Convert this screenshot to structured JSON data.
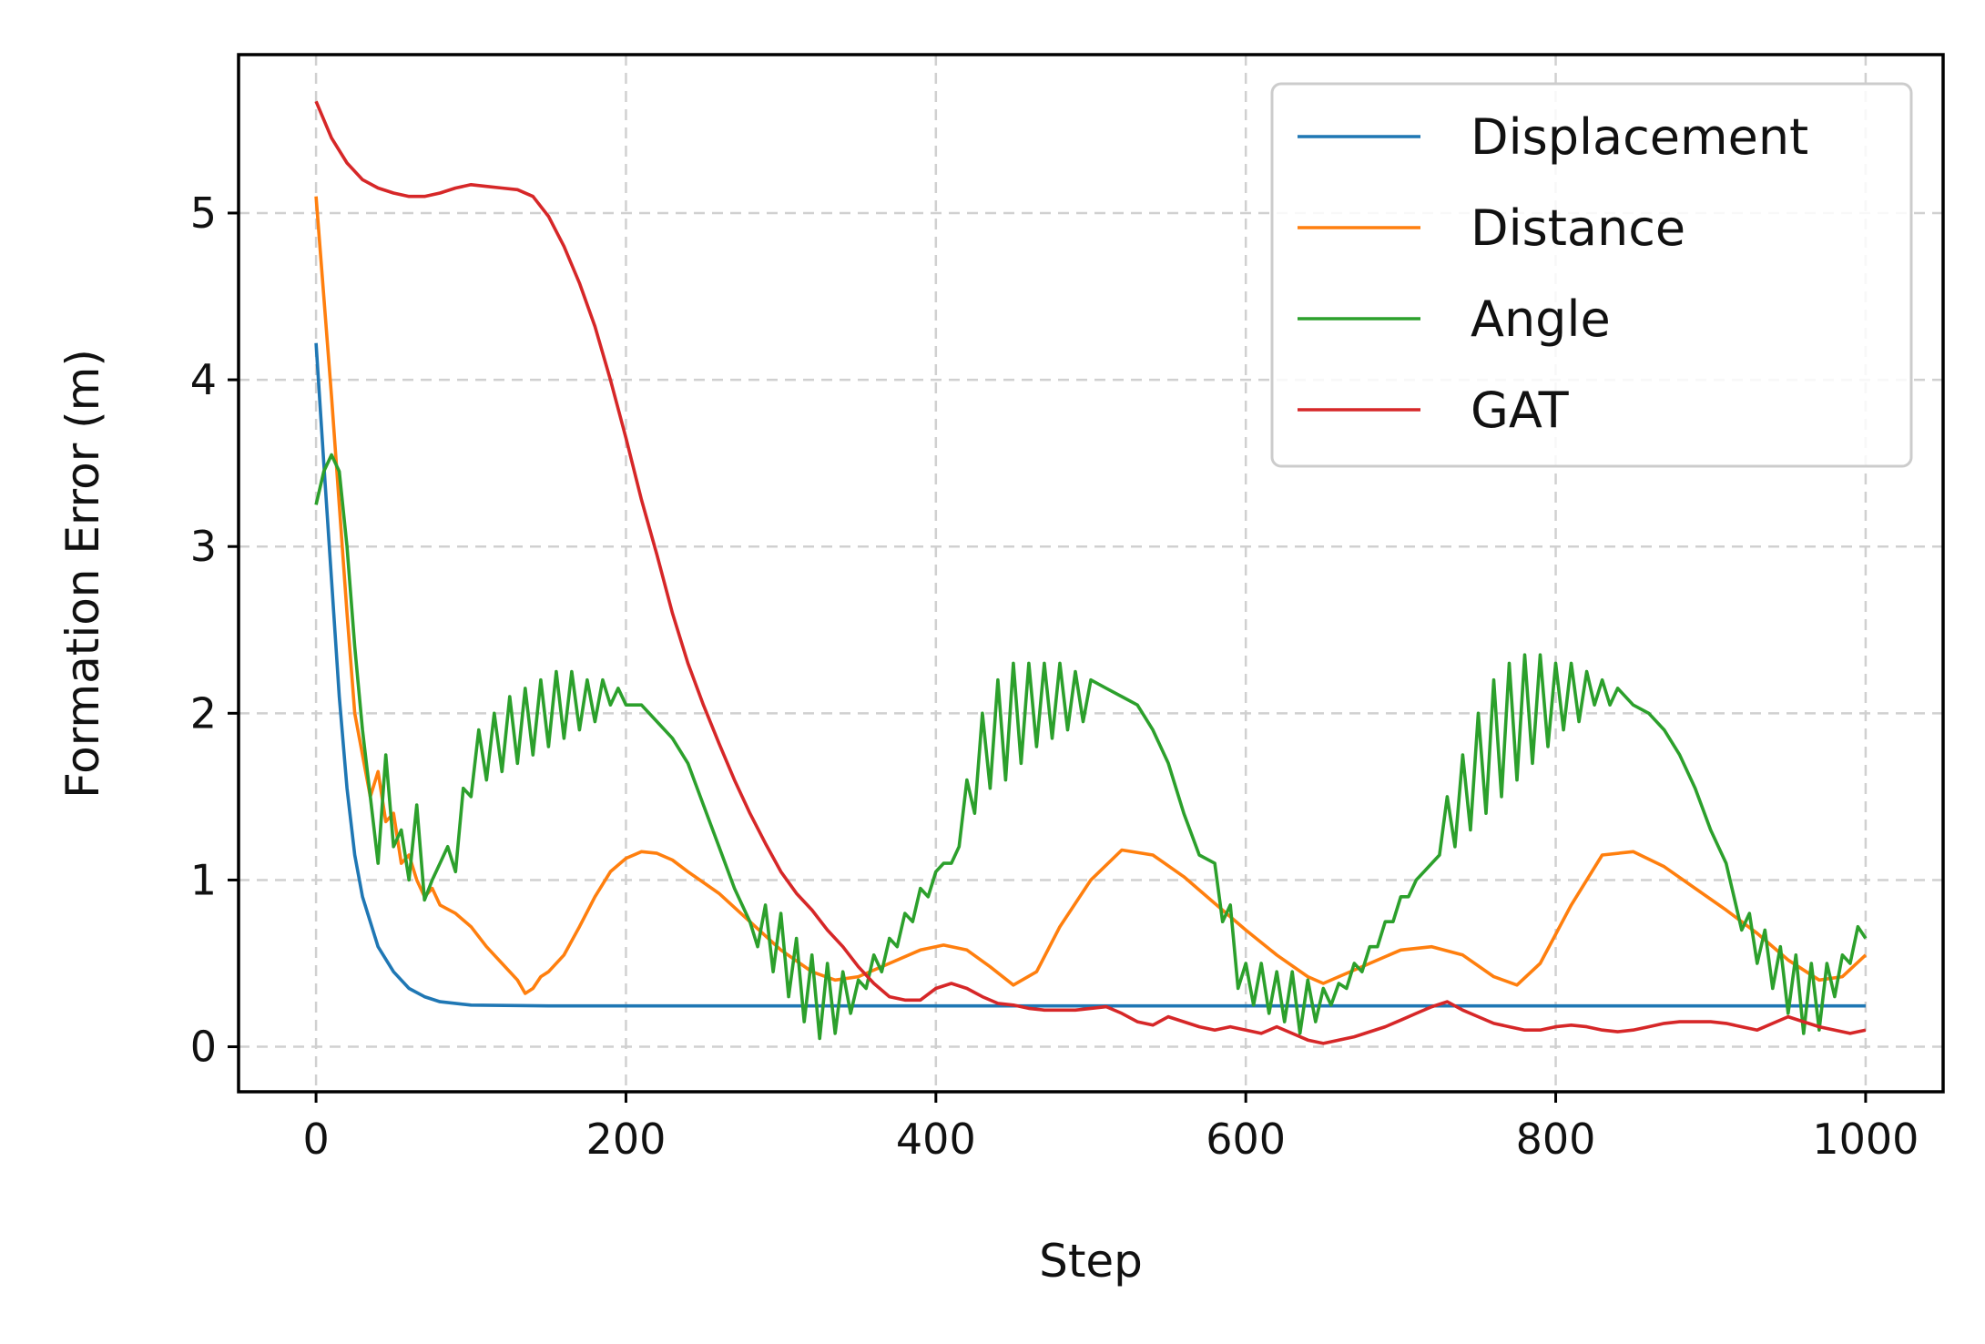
{
  "chart_data": {
    "type": "line",
    "title": "",
    "xlabel": "Step",
    "ylabel": "Formation Error (m)",
    "xlim": [
      -50,
      1050
    ],
    "ylim": [
      -0.27,
      5.95
    ],
    "xticks": [
      0,
      200,
      400,
      600,
      800,
      1000
    ],
    "yticks": [
      0,
      1,
      2,
      3,
      4,
      5
    ],
    "grid": true,
    "legend": "top-right",
    "series": [
      {
        "name": "Displacement",
        "color": "#1f77b4",
        "x": [
          0,
          5,
          10,
          15,
          20,
          25,
          30,
          40,
          50,
          60,
          70,
          80,
          100,
          150,
          200,
          300,
          400,
          500,
          600,
          700,
          800,
          900,
          1000
        ],
        "y": [
          4.22,
          3.5,
          2.8,
          2.1,
          1.55,
          1.15,
          0.9,
          0.6,
          0.45,
          0.35,
          0.3,
          0.27,
          0.25,
          0.245,
          0.245,
          0.245,
          0.245,
          0.245,
          0.245,
          0.245,
          0.245,
          0.245,
          0.245
        ]
      },
      {
        "name": "Distance",
        "color": "#ff7f0e",
        "x": [
          0,
          10,
          20,
          25,
          30,
          35,
          40,
          45,
          50,
          55,
          60,
          65,
          70,
          75,
          80,
          90,
          100,
          110,
          120,
          130,
          135,
          140,
          145,
          150,
          160,
          170,
          180,
          190,
          200,
          210,
          220,
          230,
          240,
          260,
          280,
          300,
          320,
          335,
          350,
          370,
          390,
          405,
          420,
          435,
          450,
          465,
          480,
          500,
          520,
          540,
          560,
          580,
          600,
          620,
          640,
          650,
          660,
          680,
          700,
          720,
          740,
          760,
          775,
          790,
          810,
          830,
          850,
          870,
          890,
          910,
          930,
          950,
          970,
          985,
          1000
        ],
        "y": [
          5.1,
          3.9,
          2.6,
          2.0,
          1.75,
          1.5,
          1.65,
          1.35,
          1.4,
          1.1,
          1.15,
          1.0,
          0.9,
          0.95,
          0.85,
          0.8,
          0.72,
          0.6,
          0.5,
          0.4,
          0.32,
          0.35,
          0.42,
          0.45,
          0.55,
          0.72,
          0.9,
          1.05,
          1.13,
          1.17,
          1.16,
          1.12,
          1.05,
          0.92,
          0.75,
          0.58,
          0.45,
          0.4,
          0.42,
          0.5,
          0.58,
          0.61,
          0.58,
          0.48,
          0.37,
          0.45,
          0.72,
          1.0,
          1.18,
          1.15,
          1.02,
          0.86,
          0.7,
          0.55,
          0.42,
          0.38,
          0.42,
          0.5,
          0.58,
          0.6,
          0.55,
          0.42,
          0.37,
          0.5,
          0.85,
          1.15,
          1.17,
          1.08,
          0.95,
          0.82,
          0.68,
          0.52,
          0.4,
          0.42,
          0.55
        ]
      },
      {
        "name": "Angle",
        "color": "#2ca02c",
        "x": [
          0,
          5,
          10,
          15,
          20,
          25,
          30,
          35,
          40,
          45,
          50,
          55,
          60,
          65,
          70,
          75,
          80,
          85,
          90,
          95,
          100,
          105,
          110,
          115,
          120,
          125,
          130,
          135,
          140,
          145,
          150,
          155,
          160,
          165,
          170,
          175,
          180,
          185,
          190,
          195,
          200,
          210,
          220,
          230,
          240,
          250,
          260,
          270,
          280,
          285,
          290,
          295,
          300,
          305,
          310,
          315,
          320,
          325,
          330,
          335,
          340,
          345,
          350,
          355,
          360,
          365,
          370,
          375,
          380,
          385,
          390,
          395,
          400,
          405,
          410,
          415,
          420,
          425,
          430,
          435,
          440,
          445,
          450,
          455,
          460,
          465,
          470,
          475,
          480,
          485,
          490,
          495,
          500,
          510,
          520,
          530,
          540,
          550,
          560,
          570,
          580,
          585,
          590,
          595,
          600,
          605,
          610,
          615,
          620,
          625,
          630,
          635,
          640,
          645,
          650,
          655,
          660,
          665,
          670,
          675,
          680,
          685,
          690,
          695,
          700,
          705,
          710,
          715,
          720,
          725,
          730,
          735,
          740,
          745,
          750,
          755,
          760,
          765,
          770,
          775,
          780,
          785,
          790,
          795,
          800,
          805,
          810,
          815,
          820,
          825,
          830,
          835,
          840,
          850,
          860,
          870,
          880,
          890,
          900,
          910,
          915,
          920,
          925,
          930,
          935,
          940,
          945,
          950,
          955,
          960,
          965,
          970,
          975,
          980,
          985,
          990,
          995,
          1000
        ],
        "y": [
          3.25,
          3.45,
          3.55,
          3.45,
          3.0,
          2.4,
          1.9,
          1.5,
          1.1,
          1.75,
          1.2,
          1.3,
          1.0,
          1.45,
          0.88,
          1.0,
          1.1,
          1.2,
          1.05,
          1.55,
          1.5,
          1.9,
          1.6,
          2.0,
          1.65,
          2.1,
          1.7,
          2.15,
          1.75,
          2.2,
          1.8,
          2.25,
          1.85,
          2.25,
          1.9,
          2.2,
          1.95,
          2.2,
          2.05,
          2.15,
          2.05,
          2.05,
          1.95,
          1.85,
          1.7,
          1.45,
          1.2,
          0.95,
          0.75,
          0.6,
          0.85,
          0.45,
          0.8,
          0.3,
          0.65,
          0.15,
          0.55,
          0.05,
          0.5,
          0.08,
          0.45,
          0.2,
          0.4,
          0.35,
          0.55,
          0.45,
          0.65,
          0.6,
          0.8,
          0.75,
          0.95,
          0.9,
          1.05,
          1.1,
          1.1,
          1.2,
          1.6,
          1.4,
          2.0,
          1.55,
          2.2,
          1.6,
          2.3,
          1.7,
          2.3,
          1.8,
          2.3,
          1.85,
          2.3,
          1.9,
          2.25,
          1.95,
          2.2,
          2.15,
          2.1,
          2.05,
          1.9,
          1.7,
          1.4,
          1.15,
          1.1,
          0.75,
          0.85,
          0.35,
          0.5,
          0.25,
          0.5,
          0.2,
          0.45,
          0.15,
          0.45,
          0.08,
          0.4,
          0.15,
          0.35,
          0.25,
          0.38,
          0.35,
          0.5,
          0.45,
          0.6,
          0.6,
          0.75,
          0.75,
          0.9,
          0.9,
          1.0,
          1.05,
          1.1,
          1.15,
          1.5,
          1.2,
          1.75,
          1.3,
          2.0,
          1.4,
          2.2,
          1.5,
          2.3,
          1.6,
          2.35,
          1.7,
          2.35,
          1.8,
          2.3,
          1.9,
          2.3,
          1.95,
          2.25,
          2.05,
          2.2,
          2.05,
          2.15,
          2.05,
          2.0,
          1.9,
          1.75,
          1.55,
          1.3,
          1.1,
          0.9,
          0.7,
          0.8,
          0.5,
          0.7,
          0.35,
          0.6,
          0.2,
          0.55,
          0.08,
          0.5,
          0.1,
          0.5,
          0.3,
          0.55,
          0.5,
          0.72,
          0.65
        ]
      },
      {
        "name": "GAT",
        "color": "#d62728",
        "x": [
          0,
          10,
          20,
          30,
          40,
          50,
          60,
          70,
          80,
          90,
          100,
          110,
          120,
          130,
          140,
          150,
          160,
          170,
          180,
          190,
          200,
          210,
          220,
          230,
          240,
          250,
          260,
          270,
          280,
          290,
          300,
          310,
          320,
          330,
          340,
          350,
          360,
          370,
          380,
          390,
          400,
          410,
          420,
          430,
          440,
          450,
          460,
          470,
          480,
          490,
          500,
          510,
          520,
          530,
          540,
          550,
          560,
          570,
          580,
          590,
          600,
          610,
          620,
          630,
          640,
          650,
          660,
          670,
          680,
          690,
          700,
          710,
          720,
          730,
          740,
          750,
          760,
          770,
          780,
          790,
          800,
          810,
          820,
          830,
          840,
          850,
          860,
          870,
          880,
          890,
          900,
          910,
          920,
          930,
          940,
          950,
          960,
          970,
          980,
          990,
          1000
        ],
        "y": [
          5.67,
          5.45,
          5.3,
          5.2,
          5.15,
          5.12,
          5.1,
          5.1,
          5.12,
          5.15,
          5.17,
          5.16,
          5.15,
          5.14,
          5.1,
          4.98,
          4.8,
          4.58,
          4.32,
          4.0,
          3.65,
          3.28,
          2.95,
          2.6,
          2.3,
          2.05,
          1.82,
          1.6,
          1.4,
          1.22,
          1.05,
          0.92,
          0.82,
          0.7,
          0.6,
          0.48,
          0.38,
          0.3,
          0.28,
          0.28,
          0.35,
          0.38,
          0.35,
          0.3,
          0.26,
          0.25,
          0.23,
          0.22,
          0.22,
          0.22,
          0.23,
          0.24,
          0.2,
          0.15,
          0.13,
          0.18,
          0.15,
          0.12,
          0.1,
          0.12,
          0.1,
          0.08,
          0.12,
          0.08,
          0.04,
          0.02,
          0.04,
          0.06,
          0.09,
          0.12,
          0.16,
          0.2,
          0.24,
          0.27,
          0.22,
          0.18,
          0.14,
          0.12,
          0.1,
          0.1,
          0.12,
          0.13,
          0.12,
          0.1,
          0.09,
          0.1,
          0.12,
          0.14,
          0.15,
          0.15,
          0.15,
          0.14,
          0.12,
          0.1,
          0.14,
          0.18,
          0.15,
          0.12,
          0.1,
          0.08,
          0.1
        ]
      }
    ]
  }
}
